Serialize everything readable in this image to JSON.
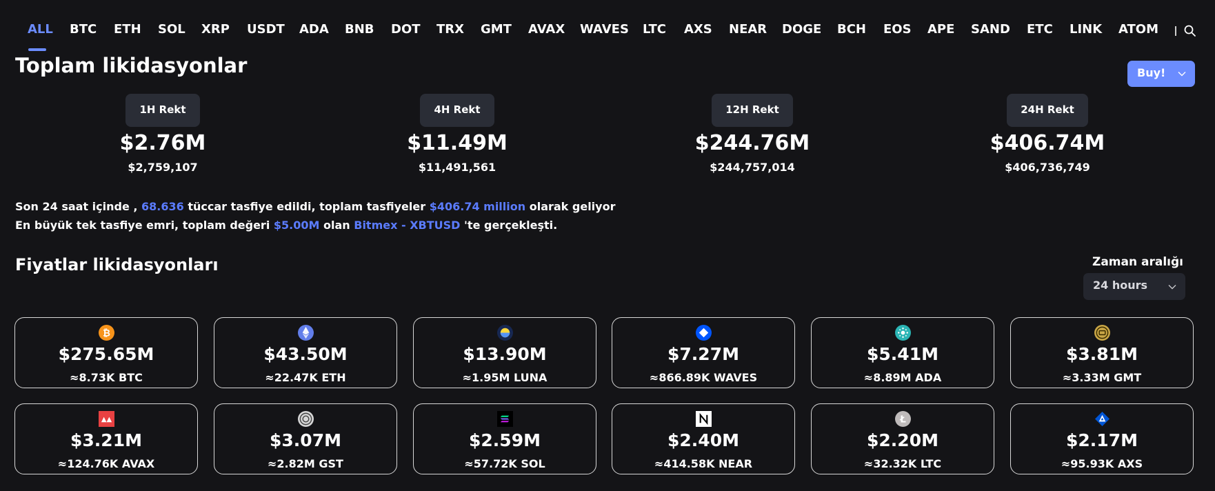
{
  "tabs": [
    "ALL",
    "BTC",
    "ETH",
    "SOL",
    "XRP",
    "USDT",
    "ADA",
    "BNB",
    "DOT",
    "TRX",
    "GMT",
    "AVAX",
    "WAVES",
    "LTC",
    "AXS",
    "NEAR",
    "DOGE",
    "BCH",
    "EOS",
    "APE",
    "SAND",
    "ETC",
    "LINK",
    "ATOM"
  ],
  "total": {
    "title": "Toplam likidasyonlar",
    "buy_label": "Buy!",
    "rekt": [
      {
        "label": "1H Rekt",
        "big": "$2.76M",
        "exact": "$2,759,107"
      },
      {
        "label": "4H Rekt",
        "big": "$11.49M",
        "exact": "$11,491,561"
      },
      {
        "label": "12H Rekt",
        "big": "$244.76M",
        "exact": "$244,757,014"
      },
      {
        "label": "24H Rekt",
        "big": "$406.74M",
        "exact": "$406,736,749"
      }
    ]
  },
  "summary": {
    "line1_a": "Son 24 saat içinde ,",
    "traders": "68.636",
    "line1_b": "tüccar tasfiye edildi, toplam tasfiyeler",
    "total": "$406.74 million",
    "line1_c": "olarak geliyor",
    "line2_a": "En büyük tek tasfiye emri, toplam değeri",
    "largest": "$5.00M",
    "line2_b": "olan",
    "exchange": "Bitmex - XBTUSD",
    "line2_c": "'te gerçekleşti."
  },
  "prices": {
    "title": "Fiyatlar likidasyonları",
    "range_label": "Zaman aralığı",
    "range_value": "24 hours"
  },
  "coins": [
    {
      "usd": "$275.65M",
      "amount": "≈8.73K BTC",
      "icon": "bitcoin-icon"
    },
    {
      "usd": "$43.50M",
      "amount": "≈22.47K ETH",
      "icon": "ethereum-icon"
    },
    {
      "usd": "$13.90M",
      "amount": "≈1.95M LUNA",
      "icon": "luna-icon"
    },
    {
      "usd": "$7.27M",
      "amount": "≈866.89K WAVES",
      "icon": "waves-icon"
    },
    {
      "usd": "$5.41M",
      "amount": "≈8.89M ADA",
      "icon": "cardano-icon"
    },
    {
      "usd": "$3.81M",
      "amount": "≈3.33M GMT",
      "icon": "gmt-icon"
    },
    {
      "usd": "$3.21M",
      "amount": "≈124.76K AVAX",
      "icon": "avalanche-icon"
    },
    {
      "usd": "$3.07M",
      "amount": "≈2.82M GST",
      "icon": "gst-icon"
    },
    {
      "usd": "$2.59M",
      "amount": "≈57.72K SOL",
      "icon": "solana-icon"
    },
    {
      "usd": "$2.40M",
      "amount": "≈414.58K NEAR",
      "icon": "near-icon"
    },
    {
      "usd": "$2.20M",
      "amount": "≈32.32K LTC",
      "icon": "litecoin-icon"
    },
    {
      "usd": "$2.17M",
      "amount": "≈95.93K AXS",
      "icon": "axs-icon"
    }
  ],
  "colors": {
    "background": "#141417",
    "accent": "#6b8cff",
    "highlight": "#5b7cff",
    "badge": "#2a2d36"
  }
}
